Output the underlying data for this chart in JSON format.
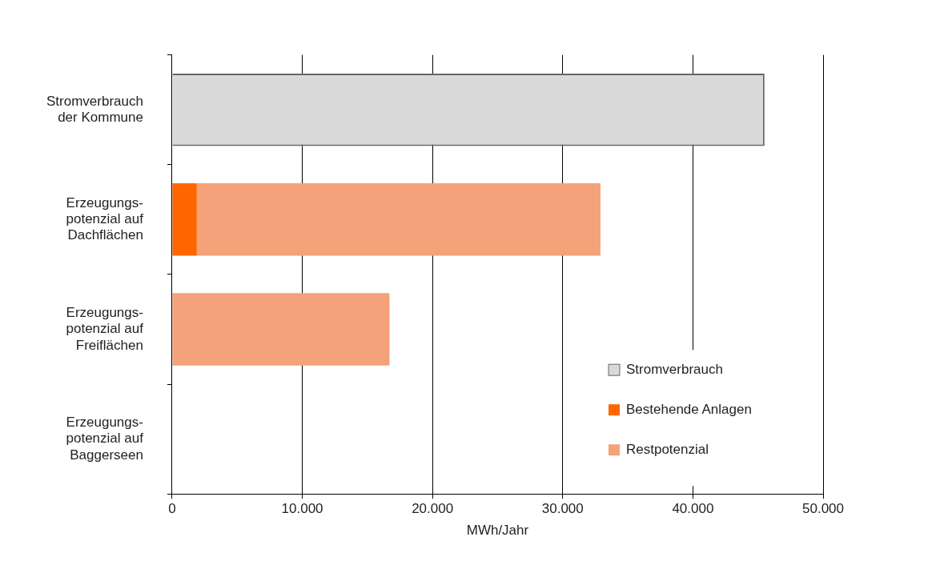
{
  "chart_data": {
    "type": "bar",
    "orientation": "horizontal",
    "stacked": true,
    "categories": [
      "Stromverbrauch\nder Kommune",
      "Erzeugungs-\npotenzial auf\nDachflächen",
      "Erzeugungs-\npotenzial auf\nFreiflächen",
      "Erzeugungs-\npotenzial auf\nBaggerseen"
    ],
    "series": [
      {
        "name": "Stromverbrauch",
        "color": "#d9d9d9",
        "values": [
          45500,
          null,
          null,
          null
        ]
      },
      {
        "name": "Bestehende Anlagen",
        "color": "#ff6600",
        "values": [
          null,
          1900,
          null,
          null
        ]
      },
      {
        "name": "Restpotenzial",
        "color": "#f4a27a",
        "values": [
          null,
          31000,
          16700,
          null
        ]
      }
    ],
    "xlabel": "MWh/Jahr",
    "xlim": [
      0,
      50000
    ],
    "xticks": [
      0,
      {
        "value": 10000,
        "label": "10.000"
      },
      {
        "value": 20000,
        "label": "20.000"
      },
      {
        "value": 30000,
        "label": "30.000"
      },
      {
        "value": 40000,
        "label": "40.000"
      },
      {
        "value": 50000,
        "label": "50.000"
      }
    ],
    "grid": "x",
    "legend": "bottom right"
  }
}
